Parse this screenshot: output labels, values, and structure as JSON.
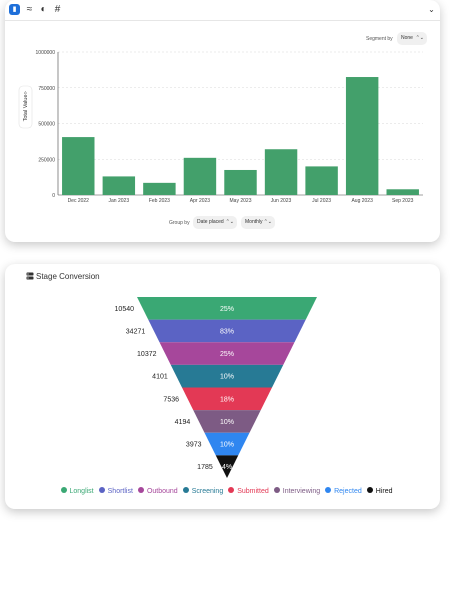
{
  "toolbar": {
    "icons": [
      "bar-chart-icon",
      "line-chart-icon",
      "pie-chart-icon",
      "hash-icon",
      "chevron-down-icon"
    ],
    "accent": "#1e6fd9"
  },
  "segment": {
    "label": "Segment by",
    "value": "None"
  },
  "group": {
    "label": "Group by",
    "field": "Date placed",
    "interval": "Monthly"
  },
  "chart_data": [
    {
      "type": "bar",
      "ylabel": "Total Value",
      "xlabel": "",
      "ylim": [
        0,
        1000000
      ],
      "yticks": [
        0,
        250000,
        500000,
        750000,
        1000000
      ],
      "ytick_labels": [
        "0",
        "250000",
        "500000",
        "750000",
        "1000000"
      ],
      "categories": [
        "Dec 2022",
        "Jan 2023",
        "Feb 2023",
        "Apr 2023",
        "May 2023",
        "Jun 2023",
        "Jul 2023",
        "Aug 2023",
        "Sep 2023"
      ],
      "values": [
        405000,
        130000,
        85000,
        260000,
        175000,
        320000,
        200000,
        825000,
        40000
      ],
      "color": "#43a06b",
      "grid": true
    },
    {
      "type": "funnel",
      "title": "Stage Conversion",
      "stages": [
        "Longlist",
        "Shortlist",
        "Outbound",
        "Screening",
        "Submitted",
        "Interviewing",
        "Rejected",
        "Hired"
      ],
      "counts": [
        10540,
        34271,
        10372,
        4101,
        7536,
        4194,
        3973,
        1785
      ],
      "percent_labels": [
        "25%",
        "83%",
        "25%",
        "10%",
        "18%",
        "10%",
        "10%",
        "4%"
      ],
      "colors": [
        "#3aa874",
        "#5b63c4",
        "#a6479b",
        "#277a95",
        "#e33955",
        "#7d5b84",
        "#2f86f0",
        "#111111"
      ]
    }
  ]
}
